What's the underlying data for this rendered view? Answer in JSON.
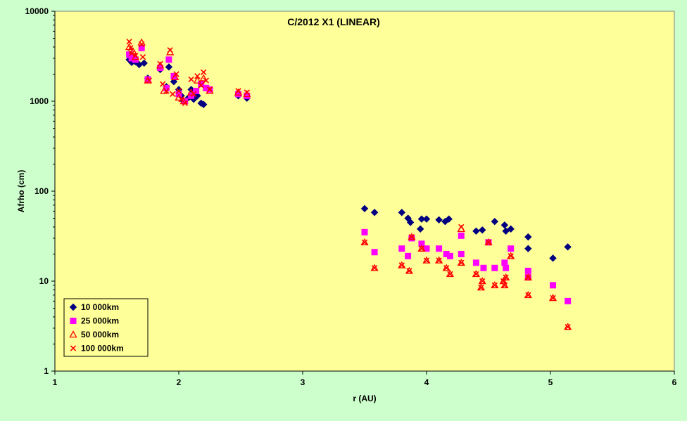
{
  "chart_data": {
    "type": "scatter",
    "title": "C/2012 X1 (LINEAR)",
    "xlabel": "r (AU)",
    "ylabel": "Afrho (cm)",
    "xlim": [
      1,
      6
    ],
    "ylim": [
      1,
      10000
    ],
    "yscale": "log",
    "x_ticks": [
      "1",
      "2",
      "3",
      "4",
      "5",
      "6"
    ],
    "y_ticks": [
      "1",
      "10",
      "100",
      "1000",
      "10000"
    ],
    "grid": false,
    "legend_position": "bottom-left",
    "colors": {
      "plot_bg": "#ffff99",
      "page_bg": "#ccffcc",
      "s10k": "#000080",
      "s25k": "#ff00ff",
      "s50k": "#ff0000",
      "s100k": "#ff0000"
    },
    "series": [
      {
        "name": "10 000km",
        "marker": "diamond",
        "points": [
          [
            1.6,
            2900
          ],
          [
            1.62,
            2700
          ],
          [
            1.65,
            2750
          ],
          [
            1.68,
            2550
          ],
          [
            1.72,
            2650
          ],
          [
            1.75,
            1800
          ],
          [
            1.85,
            2250
          ],
          [
            1.9,
            1450
          ],
          [
            1.92,
            2400
          ],
          [
            1.96,
            1650
          ],
          [
            2.0,
            1350
          ],
          [
            2.02,
            1150
          ],
          [
            2.04,
            1000
          ],
          [
            2.08,
            1100
          ],
          [
            2.1,
            1350
          ],
          [
            2.12,
            1050
          ],
          [
            2.15,
            1150
          ],
          [
            2.18,
            950
          ],
          [
            2.2,
            920
          ],
          [
            2.48,
            1150
          ],
          [
            2.55,
            1080
          ],
          [
            3.5,
            64
          ],
          [
            3.58,
            58
          ],
          [
            3.8,
            58
          ],
          [
            3.85,
            50
          ],
          [
            3.87,
            45
          ],
          [
            3.95,
            38
          ],
          [
            3.96,
            49
          ],
          [
            4.0,
            49
          ],
          [
            4.1,
            48
          ],
          [
            4.15,
            46
          ],
          [
            4.18,
            49
          ],
          [
            4.4,
            36
          ],
          [
            4.45,
            37
          ],
          [
            4.55,
            46
          ],
          [
            4.63,
            42
          ],
          [
            4.64,
            36
          ],
          [
            4.68,
            38
          ],
          [
            4.82,
            31
          ],
          [
            4.82,
            23
          ],
          [
            5.02,
            18
          ],
          [
            5.14,
            24
          ]
        ]
      },
      {
        "name": "25 000km",
        "marker": "square",
        "points": [
          [
            1.6,
            3300
          ],
          [
            1.62,
            3000
          ],
          [
            1.65,
            2900
          ],
          [
            1.7,
            3900
          ],
          [
            1.75,
            1750
          ],
          [
            1.85,
            2350
          ],
          [
            1.9,
            1400
          ],
          [
            1.92,
            2900
          ],
          [
            1.96,
            1900
          ],
          [
            2.0,
            1200
          ],
          [
            2.05,
            1000
          ],
          [
            2.1,
            1150
          ],
          [
            2.14,
            1300
          ],
          [
            2.18,
            1550
          ],
          [
            2.22,
            1400
          ],
          [
            2.25,
            1350
          ],
          [
            2.48,
            1200
          ],
          [
            2.55,
            1150
          ],
          [
            3.5,
            35
          ],
          [
            3.58,
            21
          ],
          [
            3.8,
            23
          ],
          [
            3.85,
            19
          ],
          [
            3.88,
            30
          ],
          [
            3.96,
            26
          ],
          [
            4.0,
            23
          ],
          [
            4.1,
            23
          ],
          [
            4.16,
            20
          ],
          [
            4.19,
            19
          ],
          [
            4.28,
            32
          ],
          [
            4.28,
            20
          ],
          [
            4.4,
            16
          ],
          [
            4.46,
            14
          ],
          [
            4.5,
            27
          ],
          [
            4.55,
            14
          ],
          [
            4.63,
            16
          ],
          [
            4.64,
            14
          ],
          [
            4.68,
            23
          ],
          [
            4.82,
            13
          ],
          [
            4.82,
            11
          ],
          [
            5.02,
            9
          ],
          [
            5.14,
            6
          ]
        ]
      },
      {
        "name": "50 000km",
        "marker": "triangle",
        "points": [
          [
            1.6,
            4000
          ],
          [
            1.63,
            3600
          ],
          [
            1.65,
            3100
          ],
          [
            1.7,
            4500
          ],
          [
            1.75,
            1700
          ],
          [
            1.85,
            2500
          ],
          [
            1.88,
            1300
          ],
          [
            1.93,
            3500
          ],
          [
            1.97,
            1850
          ],
          [
            2.0,
            1100
          ],
          [
            2.04,
            1000
          ],
          [
            2.1,
            1250
          ],
          [
            2.15,
            1700
          ],
          [
            2.2,
            1800
          ],
          [
            2.25,
            1300
          ],
          [
            2.48,
            1250
          ],
          [
            2.55,
            1200
          ],
          [
            3.5,
            27
          ],
          [
            3.58,
            14
          ],
          [
            3.8,
            15
          ],
          [
            3.86,
            13
          ],
          [
            3.88,
            31
          ],
          [
            3.96,
            23
          ],
          [
            4.0,
            17
          ],
          [
            4.1,
            17
          ],
          [
            4.16,
            14
          ],
          [
            4.19,
            12
          ],
          [
            4.28,
            38
          ],
          [
            4.28,
            16
          ],
          [
            4.4,
            12
          ],
          [
            4.44,
            8.5
          ],
          [
            4.45,
            10
          ],
          [
            4.5,
            27
          ],
          [
            4.55,
            9
          ],
          [
            4.62,
            10
          ],
          [
            4.63,
            9
          ],
          [
            4.64,
            11
          ],
          [
            4.68,
            19
          ],
          [
            4.82,
            11
          ],
          [
            4.82,
            7
          ],
          [
            5.02,
            6.5
          ],
          [
            5.14,
            3.1
          ]
        ]
      },
      {
        "name": "100 000km",
        "marker": "x",
        "points": [
          [
            1.6,
            4600
          ],
          [
            1.61,
            3900
          ],
          [
            1.62,
            3400
          ],
          [
            1.65,
            3200
          ],
          [
            1.7,
            4300
          ],
          [
            1.71,
            3100
          ],
          [
            1.76,
            1700
          ],
          [
            1.85,
            2600
          ],
          [
            1.87,
            1550
          ],
          [
            1.9,
            1300
          ],
          [
            1.93,
            3700
          ],
          [
            1.95,
            1200
          ],
          [
            1.98,
            2000
          ],
          [
            2.0,
            1300
          ],
          [
            2.02,
            1050
          ],
          [
            2.05,
            950
          ],
          [
            2.1,
            1750
          ],
          [
            2.12,
            1200
          ],
          [
            2.15,
            1900
          ],
          [
            2.18,
            1500
          ],
          [
            2.2,
            2100
          ],
          [
            2.22,
            1700
          ],
          [
            2.25,
            1350
          ],
          [
            2.48,
            1300
          ],
          [
            2.55,
            1250
          ],
          [
            3.5,
            27
          ],
          [
            3.58,
            14
          ],
          [
            3.8,
            15
          ],
          [
            3.86,
            13
          ],
          [
            3.88,
            31
          ],
          [
            3.96,
            23
          ],
          [
            4.0,
            17
          ],
          [
            4.1,
            17
          ],
          [
            4.16,
            14
          ],
          [
            4.19,
            12
          ],
          [
            4.28,
            40
          ],
          [
            4.28,
            16
          ],
          [
            4.4,
            12
          ],
          [
            4.44,
            8.5
          ],
          [
            4.45,
            10
          ],
          [
            4.5,
            27
          ],
          [
            4.55,
            9
          ],
          [
            4.62,
            10
          ],
          [
            4.63,
            9
          ],
          [
            4.64,
            11
          ],
          [
            4.68,
            19
          ],
          [
            4.82,
            11
          ],
          [
            4.82,
            7
          ],
          [
            5.02,
            6.5
          ],
          [
            5.14,
            3.1
          ]
        ]
      }
    ]
  }
}
